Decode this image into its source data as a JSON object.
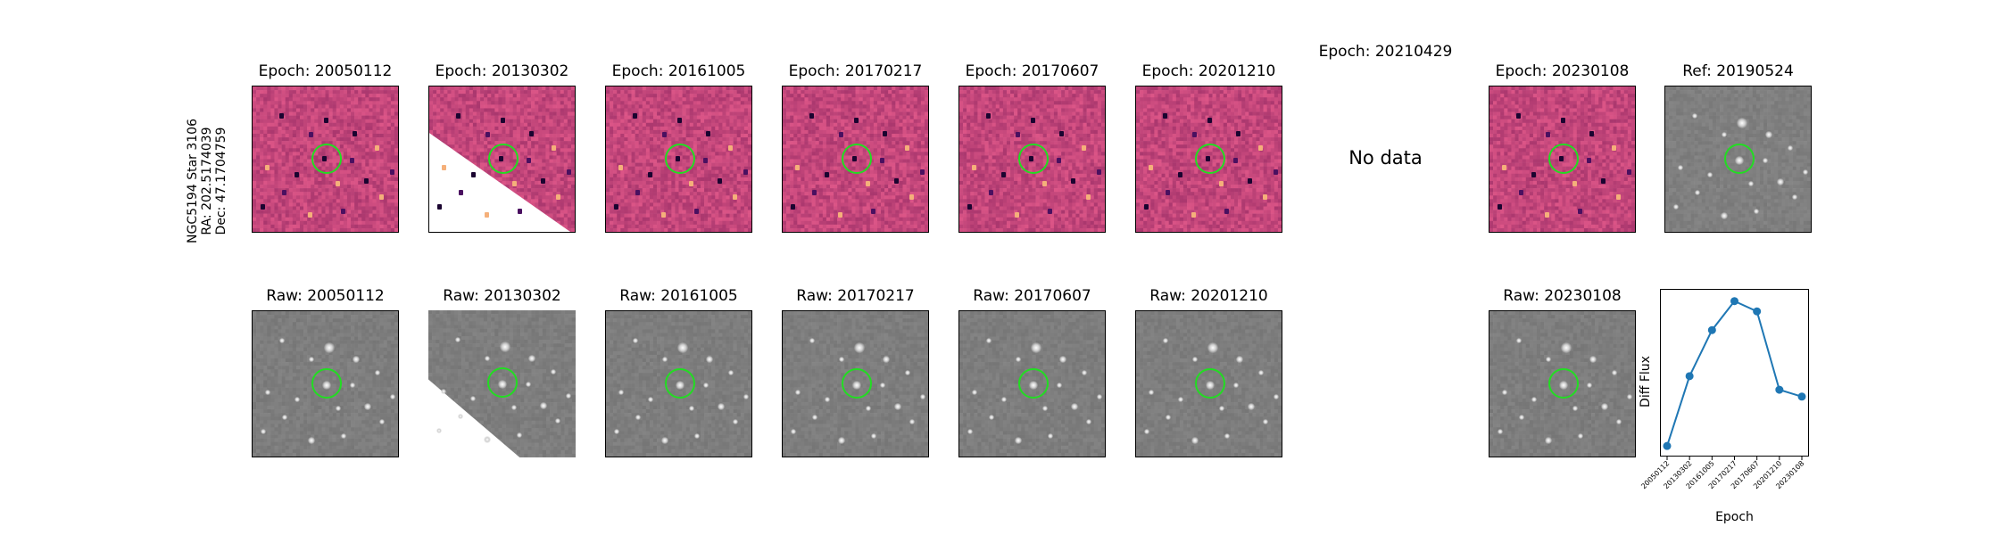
{
  "target": {
    "name": "NGC5194 Star 3106",
    "ra": "RA: 202.5174039",
    "dec": "Dec: 47.1704759"
  },
  "diff_row": [
    {
      "title": "Epoch: 20050112",
      "type": "diff"
    },
    {
      "title": "Epoch: 20130302",
      "type": "diff-clipped"
    },
    {
      "title": "Epoch: 20161005",
      "type": "diff"
    },
    {
      "title": "Epoch: 20170217",
      "type": "diff"
    },
    {
      "title": "Epoch: 20170607",
      "type": "diff"
    },
    {
      "title": "Epoch: 20201210",
      "type": "diff"
    },
    {
      "title": "Epoch: 20210429",
      "type": "nodata",
      "message": "No data"
    },
    {
      "title": "Epoch: 20230108",
      "type": "diff"
    },
    {
      "title": "Ref: 20190524",
      "type": "ref"
    }
  ],
  "raw_row": [
    {
      "title": "Raw: 20050112",
      "type": "raw"
    },
    {
      "title": "Raw: 20130302",
      "type": "raw-clipped"
    },
    {
      "title": "Raw: 20161005",
      "type": "raw"
    },
    {
      "title": "Raw: 20170217",
      "type": "raw"
    },
    {
      "title": "Raw: 20170607",
      "type": "raw"
    },
    {
      "title": "Raw: 20201210",
      "type": "raw"
    },
    {
      "title": "",
      "type": "empty"
    },
    {
      "title": "Raw: 20230108",
      "type": "raw"
    }
  ],
  "colors": {
    "diff_bg": "#b8467a",
    "raw_bg": "#777777",
    "ring": "#22dd22",
    "line": "#1f77b4"
  },
  "chart_data": {
    "type": "line",
    "xlabel": "Epoch",
    "ylabel": "Diff Flux",
    "categories": [
      "20050112",
      "20130302",
      "20161005",
      "20170217",
      "20170607",
      "20201210",
      "20230108"
    ],
    "values": [
      0.02,
      0.43,
      0.7,
      0.87,
      0.81,
      0.35,
      0.31
    ],
    "ylim": [
      0,
      0.9
    ],
    "grid": false
  }
}
